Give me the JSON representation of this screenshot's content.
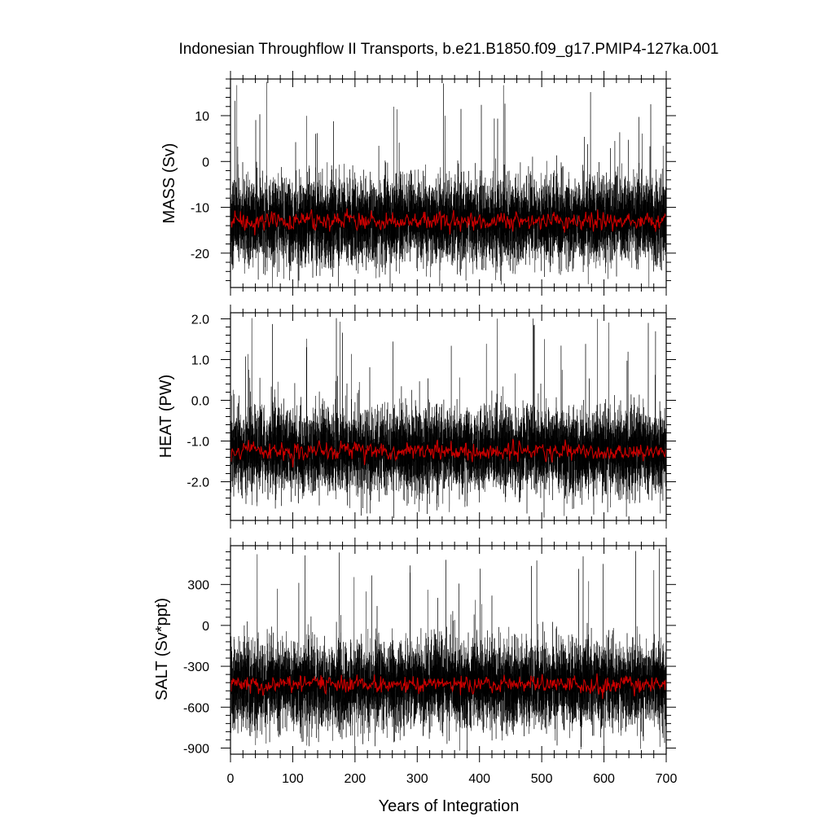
{
  "title": "Indonesian Throughflow II Transports, b.e21.B1850.f09_g17.PMIP4-127ka.001",
  "colors": {
    "monthly": "#000000",
    "annual": "#cc0000",
    "axis": "#000000"
  },
  "chart_data": [
    {
      "type": "line",
      "ylabel": "MASS (Sv)",
      "xlabel": "",
      "xlim": [
        0,
        700
      ],
      "ylim": [
        -27.5,
        18
      ],
      "xticks": [
        0,
        100,
        200,
        300,
        400,
        500,
        600,
        700
      ],
      "yticks": [
        -20,
        -10,
        0,
        10
      ],
      "ytick_labels": [
        "-20",
        "-10",
        "0",
        "10"
      ],
      "series": [
        {
          "role": "monthly",
          "mean": -13,
          "spread": 4.4,
          "min": -27.5,
          "max": 17.5
        },
        {
          "role": "annual",
          "mean": -13,
          "spread": 0.9
        }
      ]
    },
    {
      "type": "line",
      "ylabel": "HEAT (PW)",
      "xlabel": "",
      "xlim": [
        0,
        700
      ],
      "ylim": [
        -2.95,
        2.15
      ],
      "xticks": [
        0,
        100,
        200,
        300,
        400,
        500,
        600,
        700
      ],
      "yticks": [
        -2.0,
        -1.0,
        0.0,
        1.0,
        2.0
      ],
      "ytick_labels": [
        "-2.0",
        "-1.0",
        "0.0",
        "1.0",
        "2.0"
      ],
      "series": [
        {
          "role": "monthly",
          "mean": -1.25,
          "spread": 0.48,
          "min": -2.9,
          "max": 2.05
        },
        {
          "role": "annual",
          "mean": -1.25,
          "spread": 0.1
        }
      ]
    },
    {
      "type": "line",
      "ylabel": "SALT (Sv*ppt)",
      "xlabel": "Years of Integration",
      "xlim": [
        0,
        700
      ],
      "ylim": [
        -945,
        585
      ],
      "xticks": [
        0,
        100,
        200,
        300,
        400,
        500,
        600,
        700
      ],
      "xtick_labels": [
        "0",
        "100",
        "200",
        "300",
        "400",
        "500",
        "600",
        "700"
      ],
      "yticks": [
        -900,
        -600,
        -300,
        0,
        300
      ],
      "ytick_labels": [
        "-900",
        "-600",
        "-300",
        "0",
        "300"
      ],
      "series": [
        {
          "role": "monthly",
          "mean": -430,
          "spread": 148,
          "min": -930,
          "max": 570
        },
        {
          "role": "annual",
          "mean": -430,
          "spread": 30
        }
      ]
    }
  ]
}
